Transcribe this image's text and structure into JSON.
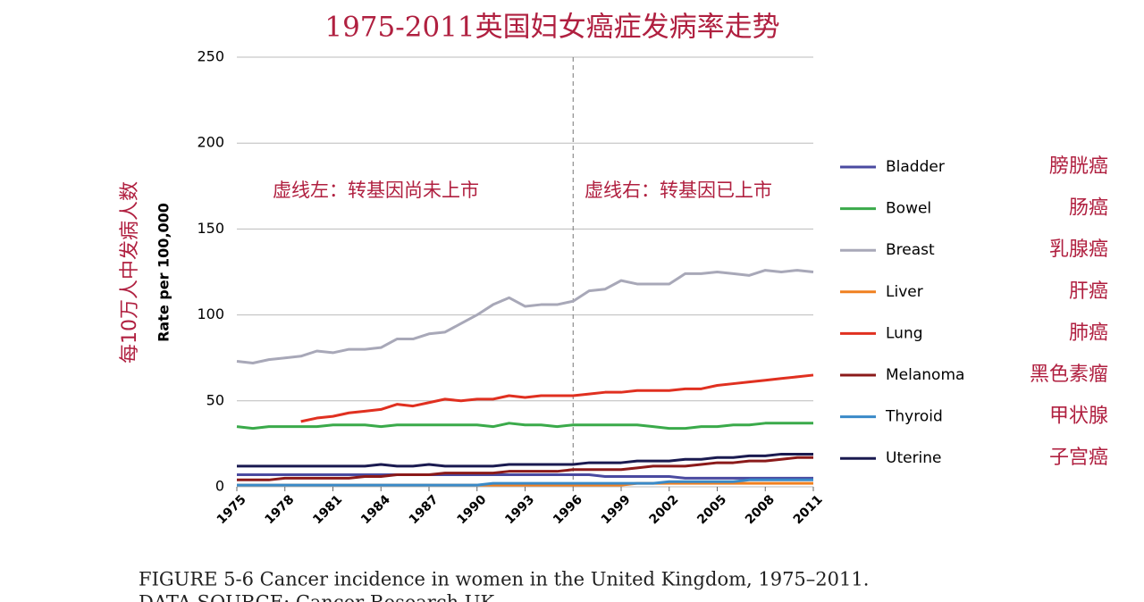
{
  "chart_data": {
    "type": "line",
    "title": "1975-2011英国妇女癌症发病率走势",
    "y_label": "Rate per 100,000",
    "y_label_zh": "每10万人中发病人数",
    "annotations": [
      "虚线左：转基因尚未上市",
      "虚线右：转基因已上市"
    ],
    "divider_x": 1996,
    "caption": [
      "FIGURE 5-6 Cancer incidence in women in the United Kingdom, 1975–2011.",
      "DATA SOURCE: Cancer Research UK."
    ],
    "x": [
      1975,
      1976,
      1977,
      1978,
      1979,
      1980,
      1981,
      1982,
      1983,
      1984,
      1985,
      1986,
      1987,
      1988,
      1989,
      1990,
      1991,
      1992,
      1993,
      1994,
      1995,
      1996,
      1997,
      1998,
      1999,
      2000,
      2001,
      2002,
      2003,
      2004,
      2005,
      2006,
      2007,
      2008,
      2009,
      2010,
      2011
    ],
    "xlim": [
      1975,
      2011
    ],
    "xticks": [
      1975,
      1978,
      1981,
      1984,
      1987,
      1990,
      1993,
      1996,
      1999,
      2002,
      2005,
      2008,
      2011
    ],
    "ylim": [
      0,
      250
    ],
    "yticks": [
      0,
      50,
      100,
      150,
      200,
      250
    ],
    "grid": true,
    "legend": "right",
    "series": [
      {
        "name": "Bladder",
        "name_zh": "膀胱癌",
        "color": "#4a4aa0",
        "values": [
          7,
          7,
          7,
          7,
          7,
          7,
          7,
          7,
          7,
          7,
          7,
          7,
          7,
          7,
          7,
          7,
          7,
          7,
          7,
          7,
          7,
          7,
          7,
          6,
          6,
          6,
          6,
          6,
          5,
          5,
          5,
          5,
          5,
          5,
          5,
          5,
          5
        ]
      },
      {
        "name": "Bowel",
        "name_zh": "肠癌",
        "color": "#3aaa4a",
        "values": [
          35,
          34,
          35,
          35,
          35,
          35,
          36,
          36,
          36,
          35,
          36,
          36,
          36,
          36,
          36,
          36,
          35,
          37,
          36,
          36,
          35,
          36,
          36,
          36,
          36,
          36,
          35,
          34,
          34,
          35,
          35,
          36,
          36,
          37,
          37,
          37,
          37
        ]
      },
      {
        "name": "Breast",
        "name_zh": "乳腺癌",
        "color": "#a8a8b8",
        "values": [
          73,
          72,
          74,
          75,
          76,
          79,
          78,
          80,
          80,
          81,
          86,
          86,
          89,
          90,
          95,
          100,
          106,
          110,
          105,
          106,
          106,
          108,
          114,
          115,
          120,
          118,
          118,
          118,
          124,
          124,
          125,
          124,
          123,
          126,
          125,
          126,
          125
        ]
      },
      {
        "name": "Liver",
        "name_zh": "肝癌",
        "color": "#f08020",
        "values": [
          1,
          1,
          1,
          1,
          1,
          1,
          1,
          1,
          1,
          1,
          1,
          1,
          1,
          1,
          1,
          1,
          1,
          1,
          1,
          1,
          1,
          1,
          1,
          1,
          1,
          2,
          2,
          2,
          2,
          2,
          2,
          2,
          2,
          2,
          2,
          2,
          2
        ]
      },
      {
        "name": "Lung",
        "name_zh": "肺癌",
        "color": "#e03020",
        "values": [
          null,
          null,
          null,
          null,
          38,
          40,
          41,
          43,
          44,
          45,
          48,
          47,
          49,
          51,
          50,
          51,
          51,
          53,
          52,
          53,
          53,
          53,
          54,
          55,
          55,
          56,
          56,
          56,
          57,
          57,
          59,
          60,
          61,
          62,
          63,
          64,
          65
        ]
      },
      {
        "name": "Melanoma",
        "name_zh": "黑色素瘤",
        "color": "#8b1a1a",
        "values": [
          4,
          4,
          4,
          5,
          5,
          5,
          5,
          5,
          6,
          6,
          7,
          7,
          7,
          8,
          8,
          8,
          8,
          9,
          9,
          9,
          9,
          10,
          10,
          10,
          10,
          11,
          12,
          12,
          12,
          13,
          14,
          14,
          15,
          15,
          16,
          17,
          17
        ]
      },
      {
        "name": "Thyroid",
        "name_zh": "甲状腺",
        "color": "#3a8ac8",
        "values": [
          1,
          1,
          1,
          1,
          1,
          1,
          1,
          1,
          1,
          1,
          1,
          1,
          1,
          1,
          1,
          1,
          2,
          2,
          2,
          2,
          2,
          2,
          2,
          2,
          2,
          2,
          2,
          3,
          3,
          3,
          3,
          3,
          4,
          4,
          4,
          4,
          4
        ]
      },
      {
        "name": "Uterine",
        "name_zh": "子宫癌",
        "color": "#1a1a50",
        "values": [
          12,
          12,
          12,
          12,
          12,
          12,
          12,
          12,
          12,
          13,
          12,
          12,
          13,
          12,
          12,
          12,
          12,
          13,
          13,
          13,
          13,
          13,
          14,
          14,
          14,
          15,
          15,
          15,
          16,
          16,
          17,
          17,
          18,
          18,
          19,
          19,
          19
        ]
      }
    ]
  }
}
